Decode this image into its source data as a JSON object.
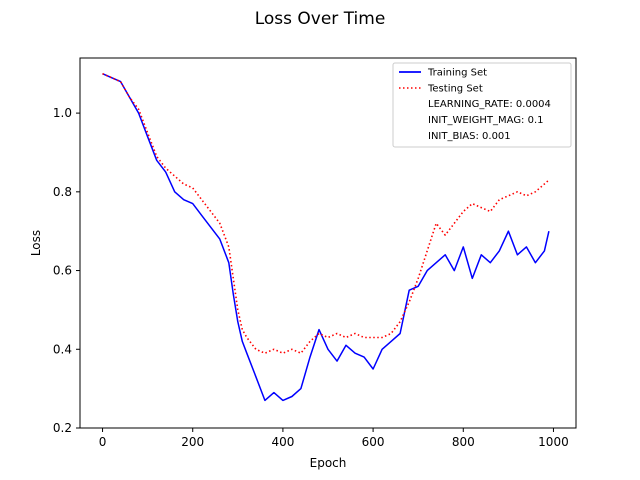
{
  "chart_data": {
    "type": "line",
    "title": "Loss Over Time",
    "xlabel": "Epoch",
    "ylabel": "Loss",
    "xlim": [
      -50,
      1050
    ],
    "ylim": [
      0.2,
      1.14
    ],
    "xticks": [
      0,
      200,
      400,
      600,
      800,
      1000
    ],
    "yticks": [
      0.2,
      0.4,
      0.6,
      0.8,
      1.0
    ],
    "ytick_labels": [
      "0.2",
      "0.4",
      "0.6",
      "0.8",
      "1.0"
    ],
    "grid": false,
    "legend_position": "top-right",
    "series": [
      {
        "name": "Training Set",
        "style": "solid",
        "color": "#0000ff",
        "x": [
          0,
          20,
          40,
          60,
          80,
          100,
          120,
          140,
          160,
          180,
          200,
          220,
          240,
          260,
          280,
          290,
          300,
          310,
          320,
          340,
          360,
          380,
          400,
          420,
          440,
          460,
          480,
          500,
          520,
          540,
          560,
          580,
          600,
          620,
          640,
          660,
          680,
          700,
          720,
          740,
          760,
          780,
          800,
          820,
          840,
          860,
          880,
          900,
          920,
          940,
          960,
          980,
          990
        ],
        "y": [
          1.1,
          1.09,
          1.08,
          1.04,
          1.0,
          0.94,
          0.88,
          0.85,
          0.8,
          0.78,
          0.77,
          0.74,
          0.71,
          0.68,
          0.62,
          0.54,
          0.47,
          0.42,
          0.39,
          0.33,
          0.27,
          0.29,
          0.27,
          0.28,
          0.3,
          0.38,
          0.45,
          0.4,
          0.37,
          0.41,
          0.39,
          0.38,
          0.35,
          0.4,
          0.42,
          0.44,
          0.55,
          0.56,
          0.6,
          0.62,
          0.64,
          0.6,
          0.66,
          0.58,
          0.64,
          0.62,
          0.65,
          0.7,
          0.64,
          0.66,
          0.62,
          0.65,
          0.7
        ]
      },
      {
        "name": "Testing Set",
        "style": "dotted",
        "color": "#ff0000",
        "x": [
          0,
          20,
          40,
          60,
          80,
          100,
          120,
          140,
          160,
          180,
          200,
          220,
          240,
          260,
          280,
          290,
          300,
          310,
          320,
          340,
          360,
          380,
          400,
          420,
          440,
          460,
          480,
          500,
          520,
          540,
          560,
          580,
          600,
          620,
          640,
          660,
          680,
          700,
          720,
          740,
          760,
          780,
          800,
          820,
          840,
          860,
          880,
          900,
          920,
          940,
          960,
          980,
          990
        ],
        "y": [
          1.1,
          1.09,
          1.08,
          1.04,
          1.01,
          0.95,
          0.89,
          0.86,
          0.84,
          0.82,
          0.81,
          0.78,
          0.75,
          0.72,
          0.66,
          0.58,
          0.5,
          0.45,
          0.43,
          0.4,
          0.39,
          0.4,
          0.39,
          0.4,
          0.39,
          0.42,
          0.44,
          0.43,
          0.44,
          0.43,
          0.44,
          0.43,
          0.43,
          0.43,
          0.44,
          0.47,
          0.52,
          0.58,
          0.65,
          0.72,
          0.69,
          0.72,
          0.75,
          0.77,
          0.76,
          0.75,
          0.78,
          0.79,
          0.8,
          0.79,
          0.8,
          0.82,
          0.83
        ]
      }
    ],
    "legend": {
      "entries": [
        "Training Set",
        "Testing Set"
      ],
      "notes": [
        "LEARNING_RATE: 0.0004",
        "INIT_WEIGHT_MAG: 0.1",
        "INIT_BIAS: 0.001"
      ]
    }
  }
}
